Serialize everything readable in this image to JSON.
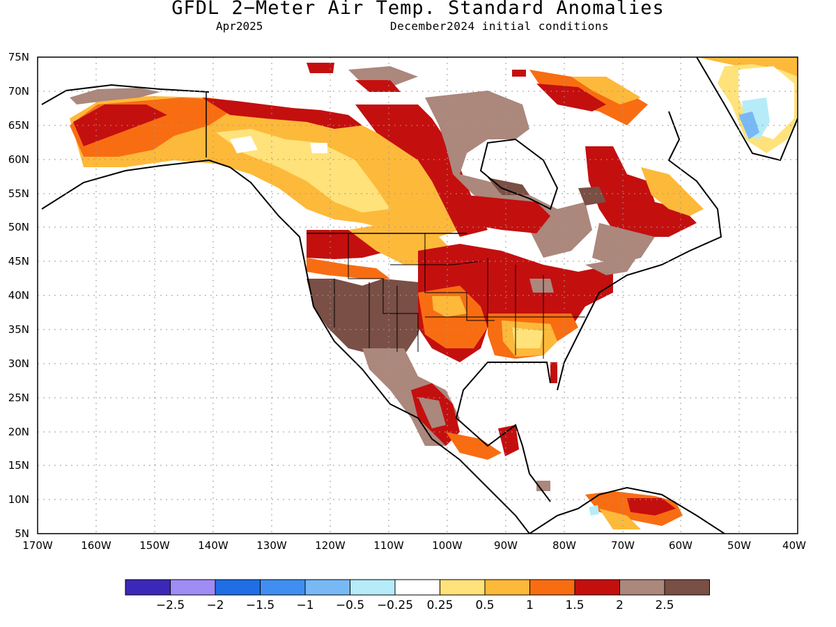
{
  "title": "GFDL 2−Meter Air Temp. Standard Anomalies",
  "subtitle_left": "Apr2025",
  "subtitle_right": "December2024 initial conditions",
  "lat_labels": [
    "75N",
    "70N",
    "65N",
    "60N",
    "55N",
    "50N",
    "45N",
    "40N",
    "35N",
    "30N",
    "25N",
    "20N",
    "15N",
    "10N",
    "5N"
  ],
  "lon_labels": [
    "170W",
    "160W",
    "150W",
    "140W",
    "130W",
    "120W",
    "110W",
    "100W",
    "90W",
    "80W",
    "70W",
    "60W",
    "50W",
    "40W"
  ],
  "colorbar": {
    "colors": [
      "#3b28b8",
      "#9f8cf4",
      "#1f6ee6",
      "#3f8ff0",
      "#78b8f5",
      "#b5ecf7",
      "#ffffff",
      "#ffe27a",
      "#fdb93a",
      "#f86d12",
      "#c40f0f",
      "#ab877c",
      "#7a4f45"
    ],
    "labels": [
      "−2.5",
      "−2",
      "−1.5",
      "−1",
      "−0.5",
      "−0.25",
      "0.25",
      "0.5",
      "1",
      "1.5",
      "2",
      "2.5"
    ]
  },
  "anomaly_palette": {
    "very_high": "#7a4f45",
    "high": "#ab877c",
    "strong": "#c40f0f",
    "warm": "#f86d12",
    "mild": "#fdb93a",
    "slight": "#ffe27a",
    "neutral": "#ffffff",
    "cool_slight": "#b5ecf7",
    "cool": "#78b8f5"
  }
}
